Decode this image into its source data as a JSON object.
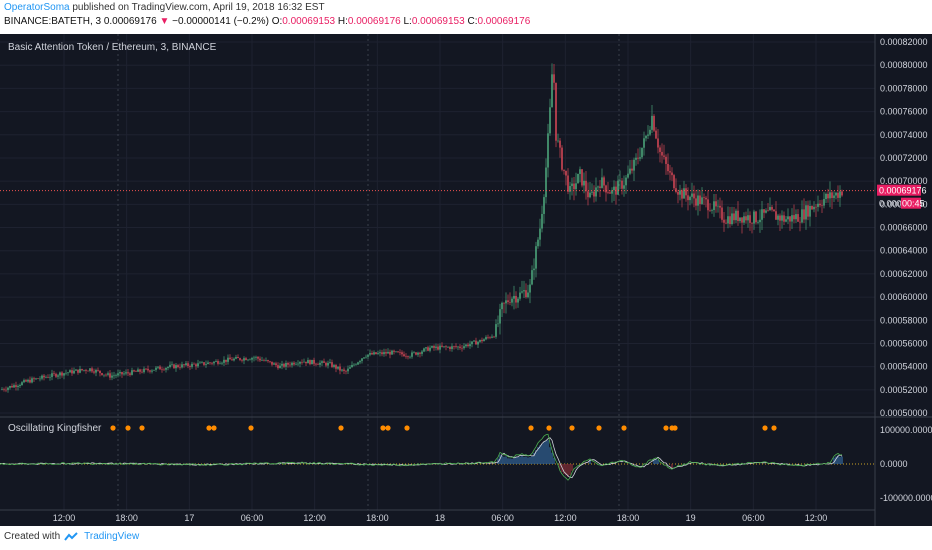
{
  "header": {
    "author": "OperatorSoma",
    "published_text": "published on TradingView.com, April 19, 2018 16:32 EST",
    "symbol_line": "BINANCE:BATETH, 3",
    "price": "0.00069176",
    "arrow": "▼",
    "change": "−0.00000141 (−0.2%)",
    "o_label": "O:",
    "o_value": "0.00069153",
    "h_label": "H:",
    "h_value": "0.00069176",
    "l_label": "L:",
    "l_value": "0.00069153",
    "c_label": "C:",
    "c_value": "0.00069176"
  },
  "footer": {
    "created_with": "Created with",
    "brand": "TradingView"
  },
  "chart_data": [
    {
      "type": "candlestick",
      "title": "Basic Attention Token / Ethereum, 3, BINANCE",
      "ylim": [
        0.0005,
        0.00082
      ],
      "y_ticks": [
        "0.00082000",
        "0.00080000",
        "0.00078000",
        "0.00076000",
        "0.00074000",
        "0.00072000",
        "0.00070000",
        "0.00068000",
        "0.00066000",
        "0.00064000",
        "0.00062000",
        "0.00060000",
        "0.00058000",
        "0.00056000",
        "0.00054000",
        "0.00052000",
        "0.00050000"
      ],
      "x_ticks": [
        "12:00",
        "18:00",
        "17",
        "06:00",
        "12:00",
        "18:00",
        "18",
        "06:00",
        "12:00",
        "18:00",
        "19",
        "06:00",
        "12:00"
      ],
      "last_price_label": "0.00069176",
      "countdown_label": "0.000",
      "countdown_time": "00:45",
      "last_price": 0.00069176,
      "price_path": [
        [
          0,
          0.00052
        ],
        [
          30,
          0.000528
        ],
        [
          60,
          0.000534
        ],
        [
          90,
          0.000538
        ],
        [
          110,
          0.000532
        ],
        [
          140,
          0.000536
        ],
        [
          170,
          0.00054
        ],
        [
          200,
          0.000542
        ],
        [
          230,
          0.000546
        ],
        [
          255,
          0.000548
        ],
        [
          280,
          0.00054
        ],
        [
          300,
          0.000545
        ],
        [
          330,
          0.000542
        ],
        [
          345,
          0.000535
        ],
        [
          365,
          0.00055
        ],
        [
          390,
          0.000552
        ],
        [
          410,
          0.00055
        ],
        [
          430,
          0.000556
        ],
        [
          460,
          0.000557
        ],
        [
          480,
          0.000562
        ],
        [
          495,
          0.000568
        ],
        [
          502,
          0.00059
        ],
        [
          510,
          0.0006
        ],
        [
          520,
          0.000602
        ],
        [
          530,
          0.000608
        ],
        [
          536,
          0.00064
        ],
        [
          540,
          0.00066
        ],
        [
          545,
          0.0007
        ],
        [
          550,
          0.00076
        ],
        [
          553,
          0.000808
        ],
        [
          556,
          0.00074
        ],
        [
          562,
          0.000715
        ],
        [
          570,
          0.00069
        ],
        [
          580,
          0.000705
        ],
        [
          590,
          0.000685
        ],
        [
          600,
          0.0007
        ],
        [
          612,
          0.00069
        ],
        [
          625,
          0.0007
        ],
        [
          635,
          0.000715
        ],
        [
          645,
          0.000735
        ],
        [
          652,
          0.000756
        ],
        [
          660,
          0.000725
        ],
        [
          670,
          0.000705
        ],
        [
          680,
          0.00069
        ],
        [
          695,
          0.000685
        ],
        [
          710,
          0.00068
        ],
        [
          725,
          0.000668
        ],
        [
          740,
          0.00067
        ],
        [
          755,
          0.000668
        ],
        [
          770,
          0.000672
        ],
        [
          785,
          0.000667
        ],
        [
          800,
          0.00067
        ],
        [
          815,
          0.00068
        ],
        [
          825,
          0.000685
        ],
        [
          835,
          0.000688
        ],
        [
          842,
          0.000692
        ]
      ]
    },
    {
      "type": "line",
      "title": "Oscillating Kingfisher",
      "y_ticks": [
        "100000.0000",
        "0.0000",
        "-100000.0000"
      ],
      "ylim": [
        -130000,
        130000
      ],
      "signal_dots_x": [
        113,
        128,
        142,
        209,
        214,
        251,
        341,
        383,
        388,
        407,
        531,
        549,
        572,
        599,
        624,
        666,
        672,
        675,
        765,
        774
      ],
      "osc_path": [
        [
          0,
          0
        ],
        [
          100,
          2000
        ],
        [
          200,
          -2000
        ],
        [
          300,
          3000
        ],
        [
          400,
          -3000
        ],
        [
          495,
          5000
        ],
        [
          500,
          35000
        ],
        [
          510,
          20000
        ],
        [
          520,
          30000
        ],
        [
          530,
          25000
        ],
        [
          540,
          70000
        ],
        [
          548,
          90000
        ],
        [
          552,
          40000
        ],
        [
          560,
          -20000
        ],
        [
          568,
          -50000
        ],
        [
          575,
          -10000
        ],
        [
          590,
          15000
        ],
        [
          600,
          -5000
        ],
        [
          620,
          10000
        ],
        [
          640,
          -10000
        ],
        [
          655,
          20000
        ],
        [
          670,
          -15000
        ],
        [
          690,
          5000
        ],
        [
          720,
          -5000
        ],
        [
          760,
          5000
        ],
        [
          800,
          -5000
        ],
        [
          830,
          3000
        ],
        [
          836,
          30000
        ],
        [
          842,
          25000
        ]
      ]
    }
  ]
}
